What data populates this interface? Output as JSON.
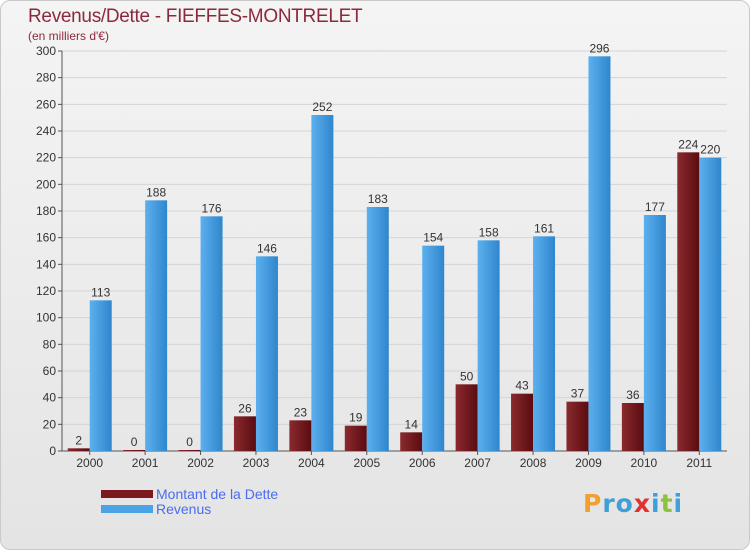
{
  "header": {
    "title": "Revenus/Dette - FIEFFES-MONTRELET",
    "subtitle": "(en milliers d'€)"
  },
  "legend": {
    "dette_label": "Montant de la Dette",
    "revenus_label": "Revenus"
  },
  "logo": {
    "letters": [
      "P",
      "r",
      "o",
      "x",
      "i",
      "t",
      "i"
    ],
    "colors": [
      "#f0a030",
      "#3ea0d8",
      "#3ea0d8",
      "#e03030",
      "#3ea0d8",
      "#8cc23c",
      "#3ea0d8"
    ]
  },
  "colors": {
    "dette": "#7a1a1e",
    "revenus": "#4aa3e4",
    "title": "#8c2a3c",
    "legend_text": "#4a6cf0"
  },
  "chart_data": {
    "type": "bar",
    "title": "Revenus/Dette - FIEFFES-MONTRELET",
    "subtitle": "(en milliers d'€)",
    "categories": [
      "2000",
      "2001",
      "2002",
      "2003",
      "2004",
      "2005",
      "2006",
      "2007",
      "2008",
      "2009",
      "2010",
      "2011"
    ],
    "series": [
      {
        "name": "Montant de la Dette",
        "values": [
          2,
          0,
          0,
          26,
          23,
          19,
          14,
          50,
          43,
          37,
          36,
          224
        ]
      },
      {
        "name": "Revenus",
        "values": [
          113,
          188,
          176,
          146,
          252,
          183,
          154,
          158,
          161,
          296,
          177,
          220
        ]
      }
    ],
    "ylim": [
      0,
      300
    ],
    "yticks": [
      0,
      20,
      40,
      60,
      80,
      100,
      120,
      140,
      160,
      180,
      200,
      220,
      240,
      260,
      280,
      300
    ],
    "grid": true,
    "legend_position": "bottom-left"
  }
}
